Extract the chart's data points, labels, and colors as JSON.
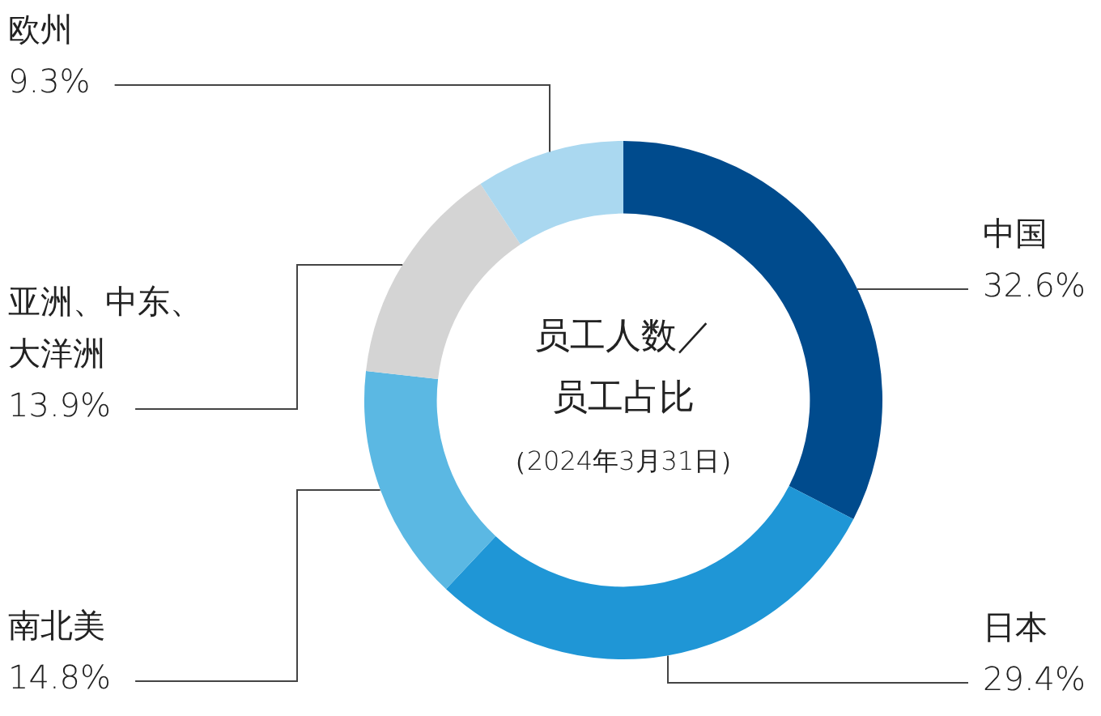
{
  "chart_data": {
    "type": "donut",
    "title": "员工人数／员工占比",
    "subtitle": "（2024年3月31日）",
    "categories": [
      "中国",
      "日本",
      "南北美",
      "亚洲、中东、大洋洲",
      "欧州"
    ],
    "values": [
      32.6,
      29.4,
      14.8,
      13.9,
      9.3
    ],
    "colors": [
      "#004b8d",
      "#1f96d6",
      "#5bb8e3",
      "#d4d4d4",
      "#aad8f0"
    ],
    "value_labels": [
      "32.6%",
      "29.4%",
      "14.8%",
      "13.9%",
      "9.3%"
    ]
  }
}
